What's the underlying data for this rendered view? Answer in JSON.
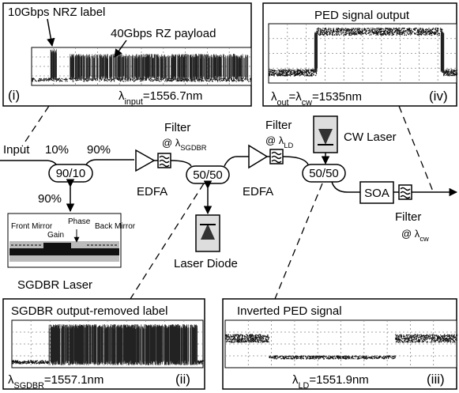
{
  "panel_i": {
    "annotations": [
      "10Gbps NRZ label",
      "40Gbps RZ payload"
    ],
    "index": "(i)",
    "wavelength": [
      "λ",
      "input",
      "=1556.7nm"
    ]
  },
  "panel_iv": {
    "title": "PED signal output",
    "index": "(iv)",
    "wavelength": [
      "λ",
      "out",
      "=λ",
      "cw",
      "=1535nm"
    ]
  },
  "panel_ii": {
    "title": "SGDBR output-removed label",
    "index": "(ii)",
    "wavelength": [
      "λ",
      "SGDBR",
      "=1557.1nm"
    ]
  },
  "panel_iii": {
    "title": "Inverted PED signal",
    "index": "(iii)",
    "wavelength": [
      "λ",
      "LD",
      "=1551.9nm"
    ]
  },
  "setup": {
    "input": "Input",
    "split_10": "10%",
    "split_90": "90%",
    "coupler_1": "90/10",
    "split_90_down": "90%",
    "filter_1": {
      "label": "Filter",
      "wavelength": [
        "@ λ",
        "SGDBR"
      ]
    },
    "edfa_1": "EDFA",
    "coupler_2": "50/50",
    "laser_diode": "Laser Diode",
    "edfa_2": "EDFA",
    "filter_2": {
      "label": "Filter",
      "wavelength": [
        "@ λ",
        "LD"
      ]
    },
    "cw_laser": "CW Laser",
    "coupler_3": "50/50",
    "soa": "SOA",
    "filter_3": {
      "label": "Filter",
      "wavelength": [
        "@ λ",
        "cw"
      ]
    },
    "sgdbr_sections": [
      "Front Mirror",
      "Gain",
      "Phase",
      "Back Mirror"
    ],
    "sgdbr_laser": "SGDBR Laser"
  }
}
